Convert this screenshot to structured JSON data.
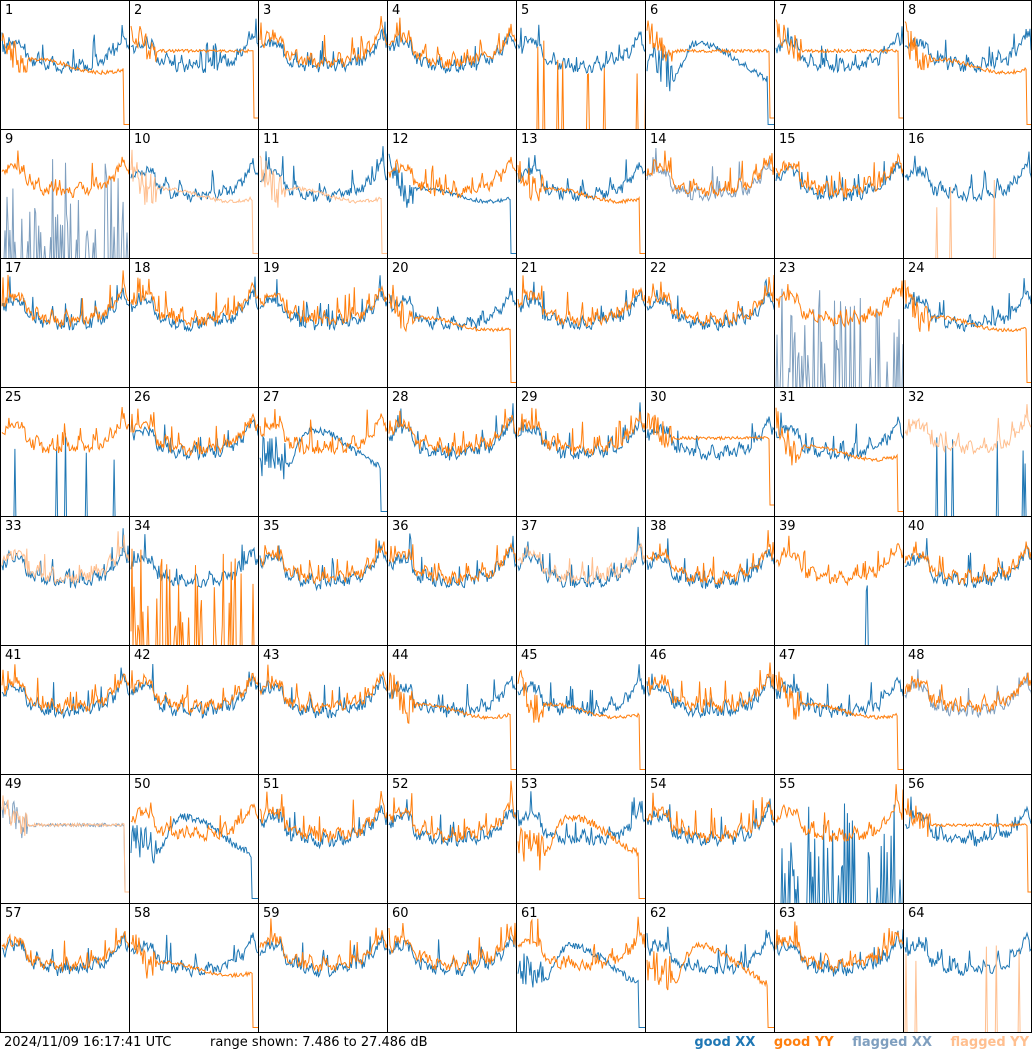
{
  "footer": {
    "timestamp": "2024/11/09 16:17:41 UTC",
    "range_text": "range shown: 7.486 to 27.486 dB"
  },
  "legend": [
    {
      "label": "good XX",
      "color": "#1f77b4"
    },
    {
      "label": "good YY",
      "color": "#ff7f0e"
    },
    {
      "label": "flagged XX",
      "color": "#7f9fbf"
    },
    {
      "label": "flagged YY",
      "color": "#ffbf8f"
    }
  ],
  "chart_data": {
    "type": "line",
    "layout": "small-multiples 8x8",
    "ylim": [
      7.486,
      27.486
    ],
    "yunit": "dB",
    "series_names": [
      "good XX",
      "good YY",
      "flagged XX",
      "flagged YY"
    ],
    "panel_labels": [
      "1",
      "2",
      "3",
      "4",
      "5",
      "6",
      "7",
      "8",
      "9",
      "10",
      "11",
      "12",
      "13",
      "14",
      "15",
      "16",
      "17",
      "18",
      "19",
      "20",
      "21",
      "22",
      "23",
      "24",
      "25",
      "26",
      "27",
      "28",
      "29",
      "30",
      "31",
      "32",
      "33",
      "34",
      "35",
      "36",
      "37",
      "38",
      "39",
      "40",
      "41",
      "42",
      "43",
      "44",
      "45",
      "46",
      "47",
      "48",
      "49",
      "50",
      "51",
      "52",
      "53",
      "54",
      "55",
      "56",
      "57",
      "58",
      "59",
      "60",
      "61",
      "62",
      "63",
      "64"
    ],
    "panels": [
      {
        "label": "1",
        "xx": "good",
        "yy": "good",
        "xx_shape": "normal",
        "yy_shape": "low"
      },
      {
        "label": "2",
        "xx": "good",
        "yy": "good",
        "xx_shape": "normal",
        "yy_shape": "flat"
      },
      {
        "label": "3",
        "xx": "good",
        "yy": "good",
        "xx_shape": "normal",
        "yy_shape": "normal"
      },
      {
        "label": "4",
        "xx": "good",
        "yy": "good",
        "xx_shape": "normal",
        "yy_shape": "normal"
      },
      {
        "label": "5",
        "xx": "good",
        "yy": "good",
        "xx_shape": "normal",
        "yy_shape": "dead"
      },
      {
        "label": "6",
        "xx": "good",
        "yy": "good",
        "xx_shape": "dip",
        "yy_shape": "flat"
      },
      {
        "label": "7",
        "xx": "good",
        "yy": "good",
        "xx_shape": "normal",
        "yy_shape": "flat"
      },
      {
        "label": "8",
        "xx": "good",
        "yy": "good",
        "xx_shape": "normal",
        "yy_shape": "low"
      },
      {
        "label": "9",
        "xx": "flagged",
        "yy": "good",
        "xx_shape": "spiky",
        "yy_shape": "normal"
      },
      {
        "label": "10",
        "xx": "good",
        "yy": "flagged",
        "xx_shape": "normal",
        "yy_shape": "low"
      },
      {
        "label": "11",
        "xx": "good",
        "yy": "flagged",
        "xx_shape": "normal",
        "yy_shape": "low"
      },
      {
        "label": "12",
        "xx": "good",
        "yy": "good",
        "xx_shape": "low",
        "yy_shape": "normal"
      },
      {
        "label": "13",
        "xx": "good",
        "yy": "good",
        "xx_shape": "normal",
        "yy_shape": "low"
      },
      {
        "label": "14",
        "xx": "flagged",
        "yy": "good",
        "xx_shape": "normal",
        "yy_shape": "normal"
      },
      {
        "label": "15",
        "xx": "good",
        "yy": "good",
        "xx_shape": "normal",
        "yy_shape": "normal"
      },
      {
        "label": "16",
        "xx": "good",
        "yy": "flagged",
        "xx_shape": "normal",
        "yy_shape": "dead"
      },
      {
        "label": "17",
        "xx": "good",
        "yy": "good",
        "xx_shape": "normal",
        "yy_shape": "normal"
      },
      {
        "label": "18",
        "xx": "good",
        "yy": "good",
        "xx_shape": "normal",
        "yy_shape": "normal"
      },
      {
        "label": "19",
        "xx": "good",
        "yy": "good",
        "xx_shape": "normal",
        "yy_shape": "normal"
      },
      {
        "label": "20",
        "xx": "good",
        "yy": "good",
        "xx_shape": "normal",
        "yy_shape": "low"
      },
      {
        "label": "21",
        "xx": "good",
        "yy": "good",
        "xx_shape": "normal",
        "yy_shape": "normal"
      },
      {
        "label": "22",
        "xx": "good",
        "yy": "good",
        "xx_shape": "normal",
        "yy_shape": "normal"
      },
      {
        "label": "23",
        "xx": "flagged",
        "yy": "good",
        "xx_shape": "spiky",
        "yy_shape": "normal"
      },
      {
        "label": "24",
        "xx": "good",
        "yy": "good",
        "xx_shape": "normal",
        "yy_shape": "low"
      },
      {
        "label": "25",
        "xx": "good",
        "yy": "good",
        "xx_shape": "dead",
        "yy_shape": "normal"
      },
      {
        "label": "26",
        "xx": "good",
        "yy": "good",
        "xx_shape": "normal",
        "yy_shape": "normal"
      },
      {
        "label": "27",
        "xx": "good",
        "yy": "good",
        "xx_shape": "dip",
        "yy_shape": "normal"
      },
      {
        "label": "28",
        "xx": "good",
        "yy": "good",
        "xx_shape": "normal",
        "yy_shape": "normal"
      },
      {
        "label": "29",
        "xx": "good",
        "yy": "good",
        "xx_shape": "normal",
        "yy_shape": "normal"
      },
      {
        "label": "30",
        "xx": "good",
        "yy": "good",
        "xx_shape": "normal",
        "yy_shape": "flat"
      },
      {
        "label": "31",
        "xx": "good",
        "yy": "good",
        "xx_shape": "normal",
        "yy_shape": "low"
      },
      {
        "label": "32",
        "xx": "good",
        "yy": "flagged",
        "xx_shape": "dead",
        "yy_shape": "normal"
      },
      {
        "label": "33",
        "xx": "good",
        "yy": "flagged",
        "xx_shape": "normal",
        "yy_shape": "normal"
      },
      {
        "label": "34",
        "xx": "good",
        "yy": "good",
        "xx_shape": "normal",
        "yy_shape": "spiky"
      },
      {
        "label": "35",
        "xx": "good",
        "yy": "good",
        "xx_shape": "normal",
        "yy_shape": "normal"
      },
      {
        "label": "36",
        "xx": "good",
        "yy": "good",
        "xx_shape": "normal",
        "yy_shape": "normal"
      },
      {
        "label": "37",
        "xx": "good",
        "yy": "flagged",
        "xx_shape": "normal",
        "yy_shape": "normal"
      },
      {
        "label": "38",
        "xx": "good",
        "yy": "good",
        "xx_shape": "normal",
        "yy_shape": "normal"
      },
      {
        "label": "39",
        "xx": "good",
        "yy": "good",
        "xx_shape": "dead",
        "yy_shape": "normal"
      },
      {
        "label": "40",
        "xx": "good",
        "yy": "good",
        "xx_shape": "normal",
        "yy_shape": "normal"
      },
      {
        "label": "41",
        "xx": "good",
        "yy": "good",
        "xx_shape": "normal",
        "yy_shape": "normal"
      },
      {
        "label": "42",
        "xx": "good",
        "yy": "good",
        "xx_shape": "normal",
        "yy_shape": "normal"
      },
      {
        "label": "43",
        "xx": "good",
        "yy": "good",
        "xx_shape": "normal",
        "yy_shape": "normal"
      },
      {
        "label": "44",
        "xx": "good",
        "yy": "good",
        "xx_shape": "normal",
        "yy_shape": "low"
      },
      {
        "label": "45",
        "xx": "good",
        "yy": "good",
        "xx_shape": "normal",
        "yy_shape": "low"
      },
      {
        "label": "46",
        "xx": "good",
        "yy": "good",
        "xx_shape": "normal",
        "yy_shape": "normal"
      },
      {
        "label": "47",
        "xx": "good",
        "yy": "good",
        "xx_shape": "normal",
        "yy_shape": "low"
      },
      {
        "label": "48",
        "xx": "flagged",
        "yy": "good",
        "xx_shape": "normal",
        "yy_shape": "normal"
      },
      {
        "label": "49",
        "xx": "flagged",
        "yy": "flagged",
        "xx_shape": "flat",
        "yy_shape": "flat"
      },
      {
        "label": "50",
        "xx": "good",
        "yy": "good",
        "xx_shape": "dip",
        "yy_shape": "normal"
      },
      {
        "label": "51",
        "xx": "good",
        "yy": "good",
        "xx_shape": "normal",
        "yy_shape": "normal"
      },
      {
        "label": "52",
        "xx": "good",
        "yy": "good",
        "xx_shape": "normal",
        "yy_shape": "normal"
      },
      {
        "label": "53",
        "xx": "good",
        "yy": "good",
        "xx_shape": "normal",
        "yy_shape": "dip"
      },
      {
        "label": "54",
        "xx": "good",
        "yy": "good",
        "xx_shape": "normal",
        "yy_shape": "normal"
      },
      {
        "label": "55",
        "xx": "good",
        "yy": "good",
        "xx_shape": "spiky",
        "yy_shape": "normal"
      },
      {
        "label": "56",
        "xx": "good",
        "yy": "good",
        "xx_shape": "normal",
        "yy_shape": "flat"
      },
      {
        "label": "57",
        "xx": "good",
        "yy": "good",
        "xx_shape": "normal",
        "yy_shape": "normal"
      },
      {
        "label": "58",
        "xx": "good",
        "yy": "good",
        "xx_shape": "normal",
        "yy_shape": "low"
      },
      {
        "label": "59",
        "xx": "good",
        "yy": "good",
        "xx_shape": "normal",
        "yy_shape": "normal"
      },
      {
        "label": "60",
        "xx": "good",
        "yy": "good",
        "xx_shape": "normal",
        "yy_shape": "normal"
      },
      {
        "label": "61",
        "xx": "good",
        "yy": "good",
        "xx_shape": "dip",
        "yy_shape": "normal"
      },
      {
        "label": "62",
        "xx": "good",
        "yy": "good",
        "xx_shape": "normal",
        "yy_shape": "dip"
      },
      {
        "label": "63",
        "xx": "good",
        "yy": "good",
        "xx_shape": "normal",
        "yy_shape": "normal"
      },
      {
        "label": "64",
        "xx": "good",
        "yy": "flagged",
        "xx_shape": "normal",
        "yy_shape": "dead"
      }
    ]
  }
}
